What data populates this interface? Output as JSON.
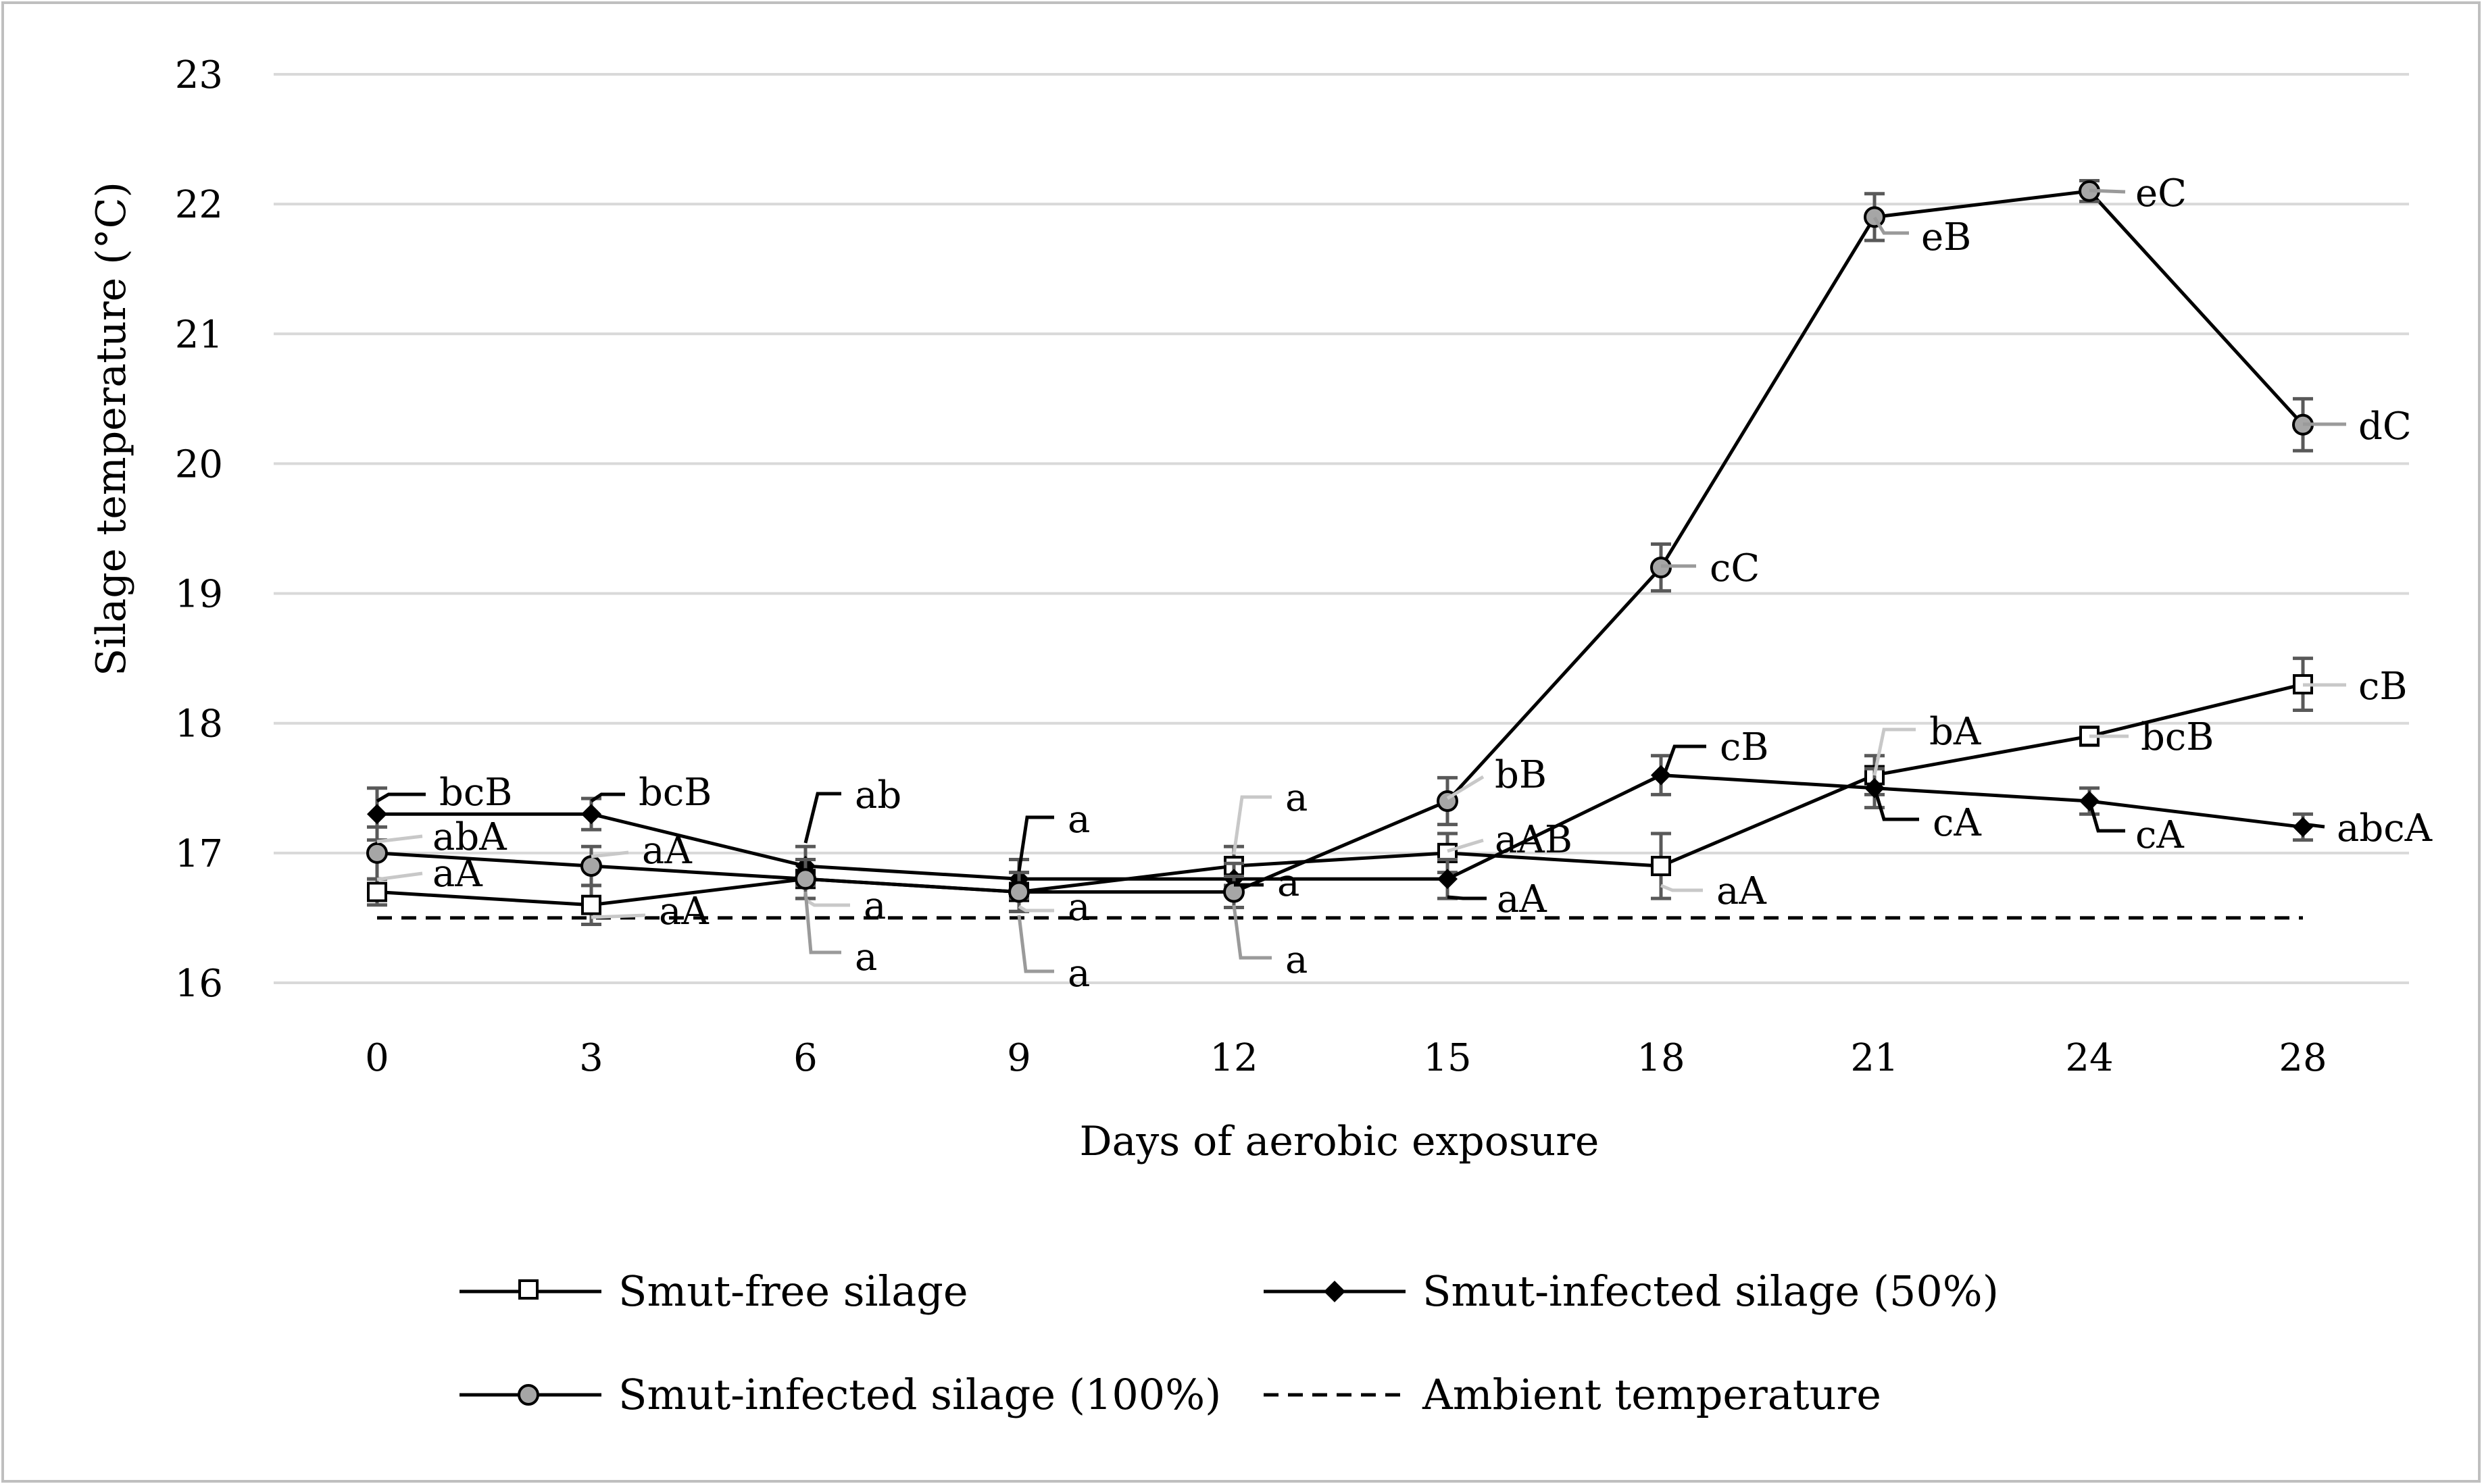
{
  "chart_data": {
    "type": "line",
    "title": "",
    "xlabel": "Days of aerobic exposure",
    "ylabel": "Silage temperature (°C)",
    "ylim": [
      16,
      23
    ],
    "yticks": [
      "16",
      "17",
      "18",
      "19",
      "20",
      "21",
      "22",
      "23"
    ],
    "categories": [
      "0",
      "3",
      "6",
      "9",
      "12",
      "15",
      "18",
      "21",
      "24",
      "28"
    ],
    "grid": true,
    "legend_position": "bottom",
    "series": [
      {
        "name": "Smut-free silage",
        "marker": "square-white",
        "values": [
          16.7,
          16.6,
          16.8,
          16.7,
          16.9,
          17.0,
          16.9,
          17.6,
          17.9,
          18.3
        ],
        "errors": [
          0.1,
          0.15,
          0.15,
          0.15,
          0.15,
          0.15,
          0.25,
          0.15,
          0.07,
          0.2
        ],
        "labels": [
          "aA",
          "aA",
          "a",
          "a",
          "a",
          "aAB",
          "aA",
          "bA",
          "bcB",
          "cB"
        ]
      },
      {
        "name": "Smut-infected silage (50%)",
        "marker": "diamond-black",
        "values": [
          17.3,
          17.3,
          16.9,
          16.8,
          16.8,
          16.8,
          17.6,
          17.5,
          17.4,
          17.2
        ],
        "errors": [
          0.2,
          0.12,
          0.15,
          0.15,
          0.12,
          0.15,
          0.15,
          0.15,
          0.1,
          0.1
        ],
        "labels": [
          "bcB",
          "bcB",
          "ab",
          "a",
          "a",
          "aA",
          "cB",
          "cA",
          "cA",
          "abcA"
        ]
      },
      {
        "name": "Smut-infected silage (100%)",
        "marker": "circle-gray",
        "values": [
          17.0,
          16.9,
          16.8,
          16.7,
          16.7,
          17.4,
          19.2,
          21.9,
          22.1,
          20.3
        ],
        "errors": [
          0.2,
          0.15,
          0.15,
          0.15,
          0.12,
          0.18,
          0.18,
          0.18,
          0.08,
          0.2
        ],
        "labels": [
          "abA",
          "aA",
          "a",
          "a",
          "a",
          "bB",
          "cC",
          "eB",
          "eC",
          "dC"
        ]
      },
      {
        "name": "Ambient temperature",
        "style": "dashed",
        "values": [
          16.5,
          16.5,
          16.5,
          16.5,
          16.5,
          16.5,
          16.5,
          16.5,
          16.5,
          16.5
        ]
      }
    ]
  },
  "colors": {
    "line": "#000000",
    "grid": "#d9d9d9",
    "errorbar": "#595959",
    "circle_fill": "#a6a6a6",
    "leader_free": "#c8c8c8",
    "leader_100": "#9a9a9a"
  }
}
